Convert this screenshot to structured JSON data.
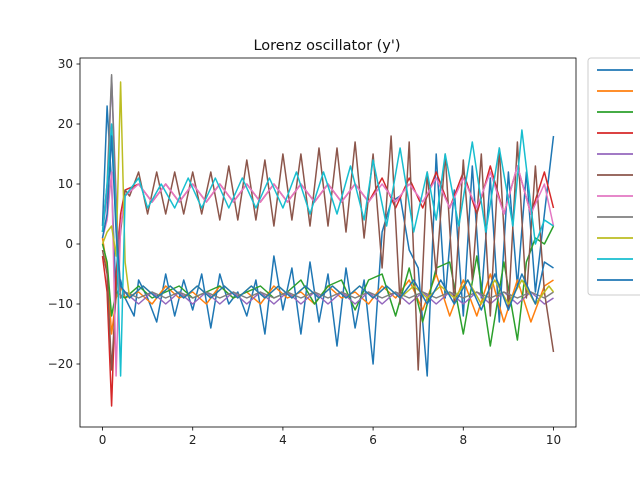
{
  "chart_data": {
    "type": "line",
    "title": "Lorenz oscillator (y')",
    "xlabel": "",
    "ylabel": "",
    "xlim": [
      -0.5,
      10.5
    ],
    "ylim": [
      -30.5,
      31
    ],
    "xticks": [
      0,
      2,
      4,
      6,
      8,
      10
    ],
    "yticks": [
      -20,
      -10,
      0,
      10,
      20,
      30
    ],
    "grid": false,
    "legend": {
      "placement": "outside-right",
      "entries_labeled": false
    },
    "series": [
      {
        "color": "#1f77b4",
        "x": [
          0,
          0.1,
          0.2,
          0.3,
          0.4,
          0.5,
          0.7,
          0.8,
          1.0,
          1.2,
          1.4,
          1.6,
          1.8,
          2.0,
          2.2,
          2.4,
          2.6,
          2.8,
          3.0,
          3.2,
          3.4,
          3.6,
          3.8,
          4.0,
          4.2,
          4.4,
          4.6,
          4.8,
          5.0,
          5.2,
          5.4,
          5.6,
          5.8,
          6.0,
          6.2,
          6.4,
          6.6,
          6.8,
          7.0,
          7.2,
          7.4,
          7.6,
          7.8,
          8.0,
          8.2,
          8.4,
          8.6,
          8.8,
          9.0,
          9.2,
          9.4,
          9.6,
          9.8,
          10.0
        ],
        "values": [
          3,
          23,
          10,
          -9,
          -6,
          -9,
          -12,
          -6,
          -9,
          -13,
          -5,
          -12,
          -6,
          -11,
          -5,
          -14,
          -5,
          -10,
          -8,
          -12,
          -6,
          -15,
          -2,
          -11,
          -4,
          -15,
          -3,
          -13,
          -5,
          -17,
          -4,
          -14,
          -6,
          -20,
          2,
          7,
          8,
          -1,
          -4,
          -22,
          15,
          -9,
          9,
          -12,
          13,
          -9,
          11,
          -13,
          12,
          -7,
          12,
          -8,
          5,
          18
        ]
      },
      {
        "color": "#ff7f0e",
        "x": [
          0,
          0.1,
          0.2,
          0.3,
          0.4,
          0.5,
          0.8,
          1.1,
          1.4,
          1.7,
          2.0,
          2.3,
          2.6,
          2.9,
          3.2,
          3.5,
          3.8,
          4.1,
          4.4,
          4.7,
          5.0,
          5.3,
          5.6,
          5.9,
          6.2,
          6.5,
          6.8,
          7.1,
          7.4,
          7.7,
          8.0,
          8.3,
          8.6,
          8.9,
          9.2,
          9.5,
          9.8,
          10.0
        ],
        "values": [
          1,
          -4,
          -15,
          -9,
          -7,
          -9,
          -8,
          -10,
          -7,
          -9,
          -8,
          -10,
          -7,
          -9,
          -8,
          -10,
          -7,
          -9,
          -8,
          -10,
          -7,
          -9,
          -8,
          -10,
          -7,
          -9,
          -6,
          -11,
          -5,
          -12,
          -6,
          -12,
          -5,
          -13,
          -6,
          -13,
          -7,
          -6
        ]
      },
      {
        "color": "#2ca02c",
        "x": [
          0,
          0.1,
          0.2,
          0.3,
          0.5,
          0.8,
          1.1,
          1.4,
          1.7,
          2.0,
          2.3,
          2.6,
          2.9,
          3.2,
          3.5,
          3.8,
          4.1,
          4.4,
          4.7,
          5.0,
          5.3,
          5.6,
          5.9,
          6.2,
          6.5,
          6.8,
          7.1,
          7.4,
          7.7,
          8.0,
          8.3,
          8.6,
          8.9,
          9.2,
          9.4,
          9.6,
          9.8,
          10.0
        ],
        "values": [
          0,
          -3,
          -12,
          -8,
          -9,
          -7,
          -9,
          -8,
          -7,
          -9,
          -8,
          -7,
          -9,
          -8,
          -7,
          -9,
          -8,
          -6,
          -10,
          -7,
          -6,
          -11,
          -6,
          -5,
          -12,
          -4,
          -13,
          -4,
          -3,
          -15,
          -2,
          -17,
          -3,
          -16,
          -3,
          1,
          0,
          3
        ]
      },
      {
        "color": "#d62728",
        "x": [
          0,
          0.1,
          0.2,
          0.3,
          0.4,
          0.5,
          0.8,
          1.1,
          1.4,
          1.7,
          2.0,
          2.3,
          2.6,
          2.9,
          3.2,
          3.5,
          3.8,
          4.1,
          4.4,
          4.7,
          5.0,
          5.3,
          5.6,
          5.9,
          6.2,
          6.5,
          6.8,
          7.1,
          7.4,
          7.7,
          8.0,
          8.3,
          8.6,
          8.9,
          9.2,
          9.5,
          9.8,
          10.0
        ],
        "values": [
          -2,
          -8,
          -27,
          -5,
          5,
          9,
          10,
          7,
          10,
          7,
          10,
          7,
          10,
          7,
          10,
          7,
          10,
          7,
          10,
          7,
          10,
          7,
          10,
          7,
          11,
          6,
          11,
          6,
          12,
          6,
          12,
          5,
          13,
          5,
          13,
          5,
          12,
          6
        ]
      },
      {
        "color": "#9467bd",
        "x": [
          0,
          0.1,
          0.2,
          0.3,
          0.4,
          0.5,
          0.8,
          1.1,
          1.4,
          1.7,
          2.0,
          2.3,
          2.6,
          2.9,
          3.2,
          3.5,
          3.8,
          4.1,
          4.4,
          4.7,
          5.0,
          5.3,
          5.6,
          5.9,
          6.2,
          6.5,
          6.8,
          7.1,
          7.4,
          7.7,
          8.0,
          8.3,
          8.6,
          8.9,
          9.2,
          9.5,
          9.8,
          10.0
        ],
        "values": [
          2,
          8,
          27.8,
          8,
          -9,
          -8,
          -10,
          -8,
          -10,
          -8,
          -10,
          -8,
          -10,
          -8,
          -10,
          -8,
          -10,
          -8,
          -10,
          -8,
          -10,
          -8,
          -10,
          -8,
          -10,
          -8,
          -10,
          -8,
          -10,
          -8,
          -10,
          -8,
          -10,
          -8,
          -10,
          -8,
          -10,
          -9
        ]
      },
      {
        "color": "#8c564b",
        "x": [
          0,
          0.1,
          0.2,
          0.3,
          0.4,
          0.5,
          0.6,
          0.8,
          1.0,
          1.2,
          1.4,
          1.6,
          1.8,
          2.0,
          2.2,
          2.4,
          2.6,
          2.8,
          3.0,
          3.2,
          3.4,
          3.6,
          3.8,
          4.0,
          4.2,
          4.4,
          4.6,
          4.8,
          5.0,
          5.2,
          5.4,
          5.6,
          5.8,
          6.0,
          6.2,
          6.4,
          6.6,
          6.8,
          7.0,
          7.2,
          7.4,
          7.6,
          7.8,
          8.0,
          8.2,
          8.4,
          8.6,
          8.8,
          9.0,
          9.2,
          9.4,
          9.6,
          9.8,
          10.0
        ],
        "values": [
          -1,
          -5,
          -21,
          -8,
          2,
          9,
          8,
          12,
          5,
          12,
          5,
          12,
          5,
          12,
          5,
          12,
          4,
          13,
          4,
          14,
          4,
          14,
          3,
          15,
          4,
          15,
          3,
          16,
          3,
          16,
          2,
          17,
          1,
          15,
          -4,
          18,
          -10,
          17,
          -21,
          12,
          -5,
          15,
          -10,
          14,
          -6,
          15,
          -12,
          16,
          -11,
          17,
          -9,
          13,
          -8,
          -18
        ]
      },
      {
        "color": "#e377c2",
        "x": [
          0,
          0.1,
          0.2,
          0.3,
          0.4,
          0.5,
          0.8,
          1.1,
          1.4,
          1.7,
          2.0,
          2.3,
          2.6,
          2.9,
          3.2,
          3.5,
          3.8,
          4.1,
          4.4,
          4.7,
          5.0,
          5.3,
          5.6,
          5.9,
          6.2,
          6.5,
          6.8,
          7.1,
          7.4,
          7.7,
          8.0,
          8.3,
          8.6,
          8.9,
          9.2,
          9.5,
          9.8,
          10.0
        ],
        "values": [
          1,
          4,
          12,
          -22,
          3,
          8,
          10,
          7,
          10,
          7,
          10,
          7,
          10,
          7,
          10,
          7,
          10,
          7,
          10,
          7,
          10,
          7,
          10,
          7,
          10,
          7,
          10,
          7,
          11,
          6,
          11,
          6,
          12,
          5,
          13,
          5,
          10,
          3
        ]
      },
      {
        "color": "#7f7f7f",
        "x": [
          0,
          0.1,
          0.2,
          0.3,
          0.4,
          0.5,
          0.8,
          1.1,
          1.4,
          1.7,
          2.0,
          2.3,
          2.6,
          2.9,
          3.2,
          3.5,
          3.8,
          4.1,
          4.4,
          4.7,
          5.0,
          5.3,
          5.6,
          5.9,
          6.2,
          6.5,
          6.8,
          7.1,
          7.4,
          7.7,
          8.0,
          8.3,
          8.6,
          8.9,
          9.2,
          9.5,
          9.8,
          10.0
        ],
        "values": [
          2,
          10,
          28.2,
          5,
          -9,
          -8,
          -9,
          -8,
          -9,
          -8,
          -9,
          -8,
          -9,
          -8,
          -9,
          -8,
          -9,
          -8,
          -9,
          -8,
          -9,
          -8,
          -9,
          -8,
          -9,
          -8,
          -9,
          -8,
          -9,
          -8,
          -9,
          -8,
          -9,
          -8,
          -9,
          -8,
          -9,
          -8
        ]
      },
      {
        "color": "#bcbd22",
        "x": [
          0,
          0.1,
          0.2,
          0.3,
          0.4,
          0.5,
          0.6,
          0.9,
          1.2,
          1.5,
          1.8,
          2.1,
          2.4,
          2.7,
          3.0,
          3.3,
          3.6,
          3.9,
          4.2,
          4.5,
          4.8,
          5.1,
          5.4,
          5.7,
          6.0,
          6.3,
          6.6,
          6.9,
          7.2,
          7.5,
          7.8,
          8.1,
          8.4,
          8.7,
          9.0,
          9.3,
          9.6,
          9.9,
          10.0
        ],
        "values": [
          0,
          2,
          3,
          -2,
          27,
          -3,
          -9,
          -7,
          -9,
          -7,
          -9,
          -7,
          -9,
          -7,
          -9,
          -7,
          -9,
          -7,
          -9,
          -7,
          -9,
          -7,
          -9,
          -7,
          -9,
          -7,
          -9,
          -7,
          -9,
          -7,
          -9,
          -6,
          -10,
          -6,
          -10,
          -6,
          -10,
          -7,
          -8
        ]
      },
      {
        "color": "#17becf",
        "x": [
          0,
          0.1,
          0.2,
          0.3,
          0.4,
          0.5,
          0.8,
          1.0,
          1.3,
          1.6,
          1.9,
          2.2,
          2.5,
          2.8,
          3.1,
          3.4,
          3.7,
          4.0,
          4.3,
          4.6,
          4.9,
          5.2,
          5.5,
          5.8,
          6.0,
          6.3,
          6.6,
          6.9,
          7.2,
          7.4,
          7.6,
          7.9,
          8.2,
          8.5,
          8.8,
          9.1,
          9.3,
          9.6,
          9.8,
          10.0
        ],
        "values": [
          2,
          10,
          20,
          4,
          -22,
          8,
          11,
          6,
          10,
          6,
          11,
          6,
          11,
          6,
          11,
          6,
          11,
          6,
          12,
          5,
          12,
          5,
          13,
          4,
          14,
          3,
          16,
          2,
          12,
          4,
          15,
          3,
          17,
          2,
          16,
          3,
          19,
          0,
          4,
          3
        ]
      },
      {
        "color": "#1f77b4",
        "x": [
          0,
          0.1,
          0.2,
          0.3,
          0.4,
          0.6,
          0.9,
          1.2,
          1.5,
          1.8,
          2.1,
          2.4,
          2.7,
          3.0,
          3.3,
          3.6,
          3.9,
          4.2,
          4.5,
          4.8,
          5.1,
          5.4,
          5.7,
          6.0,
          6.3,
          6.6,
          6.9,
          7.2,
          7.5,
          7.8,
          8.1,
          8.4,
          8.7,
          9.0,
          9.3,
          9.6,
          9.8,
          10.0
        ],
        "values": [
          1,
          5,
          18,
          2,
          -7,
          -9,
          -7,
          -9,
          -7,
          -9,
          -7,
          -9,
          -7,
          -9,
          -7,
          -9,
          -7,
          -9,
          -7,
          -9,
          -7,
          -9,
          -7,
          -9,
          -7,
          -9,
          -6,
          -10,
          -6,
          -10,
          -6,
          -11,
          -5,
          -11,
          -5,
          -10,
          -3,
          -4
        ]
      }
    ]
  }
}
